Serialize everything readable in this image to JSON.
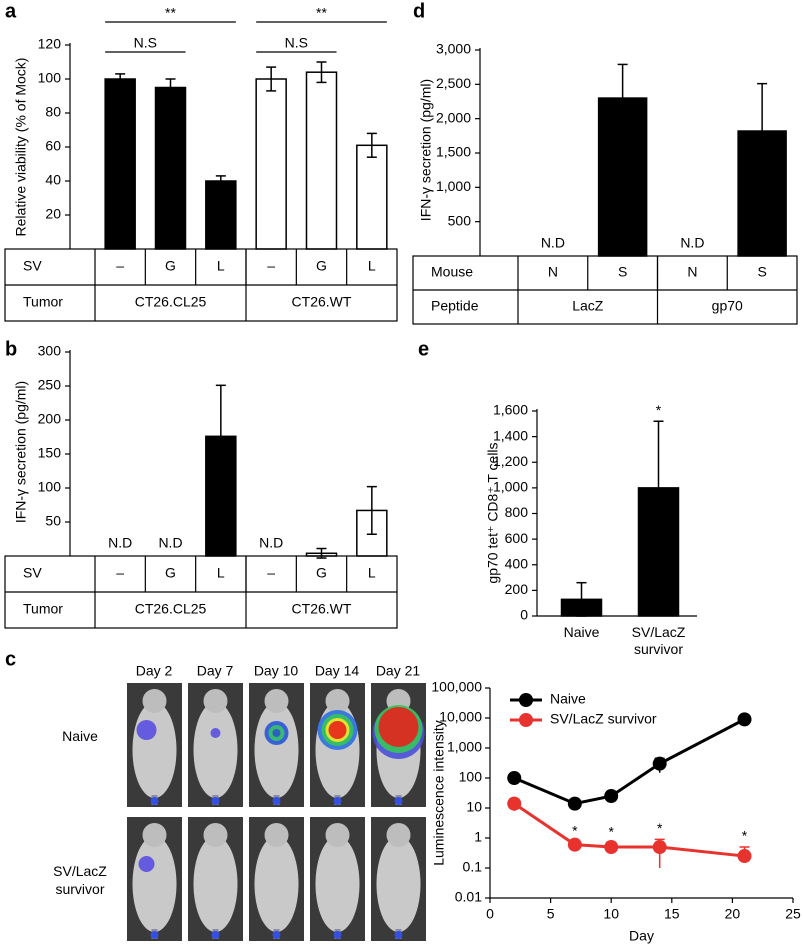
{
  "chart_data": [
    {
      "type": "bar",
      "panel_label": "a",
      "ylabel": "Relative viability (% of Mock)",
      "ylim": [
        0,
        120
      ],
      "yticks": [
        20,
        40,
        60,
        80,
        100,
        120
      ],
      "category_header": "SV",
      "categories": [
        "–",
        "G",
        "L",
        "–",
        "G",
        "L"
      ],
      "groups": {
        "header": "Tumor",
        "names": [
          "CT26.CL25",
          "CT26.WT"
        ]
      },
      "values": [
        100,
        95,
        40,
        100,
        104,
        61
      ],
      "errors": [
        3,
        5,
        3,
        7,
        6,
        7
      ],
      "colors": [
        "#000000",
        "#000000",
        "#000000",
        "#ffffff",
        "#ffffff",
        "#ffffff"
      ],
      "annotations": [
        "**",
        "N.S",
        "**",
        "N.S"
      ]
    },
    {
      "type": "bar",
      "panel_label": "b",
      "ylabel": "IFN-γ secretion (pg/ml)",
      "ylim": [
        0,
        300
      ],
      "yticks": [
        50,
        100,
        150,
        200,
        250,
        300
      ],
      "category_header": "SV",
      "categories": [
        "–",
        "G",
        "L",
        "–",
        "G",
        "L"
      ],
      "groups": {
        "header": "Tumor",
        "names": [
          "CT26.CL25",
          "CT26.WT"
        ]
      },
      "values": [
        null,
        null,
        176,
        null,
        4,
        67
      ],
      "errors": [
        null,
        null,
        75,
        null,
        7,
        35
      ],
      "value_labels": [
        "N.D",
        "N.D",
        null,
        "N.D",
        null,
        null
      ],
      "colors": [
        "#000000",
        "#000000",
        "#000000",
        "#ffffff",
        "#ffffff",
        "#ffffff"
      ]
    },
    {
      "type": "bar",
      "panel_label": "d",
      "ylabel": "IFN-γ secretion (pg/ml)",
      "ylim": [
        0,
        3000
      ],
      "yticks": [
        {
          "value": 500,
          "label": "500"
        },
        {
          "value": 1000,
          "label": "1,000"
        },
        {
          "value": 1500,
          "label": "1,500"
        },
        {
          "value": 2000,
          "label": "2,000"
        },
        {
          "value": 2500,
          "label": "2,500"
        },
        {
          "value": 3000,
          "label": "3,000"
        }
      ],
      "category_header": "Mouse",
      "categories": [
        "N",
        "S",
        "N",
        "S"
      ],
      "groups": {
        "header": "Peptide",
        "names": [
          "LacZ",
          "gp70"
        ]
      },
      "values": [
        null,
        2300,
        null,
        1820
      ],
      "errors": [
        null,
        490,
        null,
        690
      ],
      "value_labels": [
        "N.D",
        null,
        "N.D",
        null
      ],
      "colors": [
        "#000000",
        "#000000",
        "#000000",
        "#000000"
      ]
    },
    {
      "type": "bar",
      "panel_label": "e",
      "ylabel": "gp70 tet⁺ CD8⁺ T cells",
      "ylim": [
        0,
        1600
      ],
      "yticks": [
        0,
        200,
        400,
        600,
        800,
        {
          "value": 1000,
          "label": "1,000"
        },
        {
          "value": 1200,
          "label": "1,200"
        },
        {
          "value": 1400,
          "label": "1,400"
        },
        {
          "value": 1600,
          "label": "1,600"
        }
      ],
      "categories": [
        "Naive",
        "SV/LacZ survivor"
      ],
      "values": [
        130,
        1000
      ],
      "errors": [
        130,
        520
      ],
      "colors": [
        "#000000",
        "#000000"
      ],
      "annotations": [
        "*"
      ]
    },
    {
      "type": "line",
      "xlabel": "Day",
      "ylabel": "Luminescence intensity",
      "log_y": true,
      "x": [
        2,
        7,
        10,
        14,
        21
      ],
      "xlim": [
        0,
        25
      ],
      "xticks": [
        0,
        5,
        10,
        15,
        20,
        25
      ],
      "ylim": [
        0.01,
        100000
      ],
      "yticks": [
        0.01,
        0.1,
        1,
        10,
        100,
        {
          "value": 1000,
          "label": "1,000"
        },
        {
          "value": 10000,
          "label": "10,000"
        },
        {
          "value": 100000,
          "label": "100,000"
        }
      ],
      "series": [
        {
          "name": "Naive",
          "color": "#000000",
          "values": [
            100,
            14,
            25,
            300,
            9000
          ],
          "errors": [
            10,
            4,
            7,
            150,
            3000
          ]
        },
        {
          "name": "SV/LacZ survivor",
          "color": "#e8322e",
          "values": [
            14,
            0.6,
            0.5,
            0.5,
            0.25
          ],
          "errors": [
            6,
            0.15,
            0.2,
            0.4,
            0.25
          ]
        }
      ],
      "annotations": [
        "*",
        "*",
        "*",
        "*"
      ]
    }
  ],
  "imaging": {
    "panel_label": "c",
    "columns": [
      "Day 2",
      "Day 7",
      "Day 10",
      "Day 14",
      "Day 21"
    ],
    "rows": [
      "Naive",
      "SV/LacZ survivor"
    ]
  }
}
